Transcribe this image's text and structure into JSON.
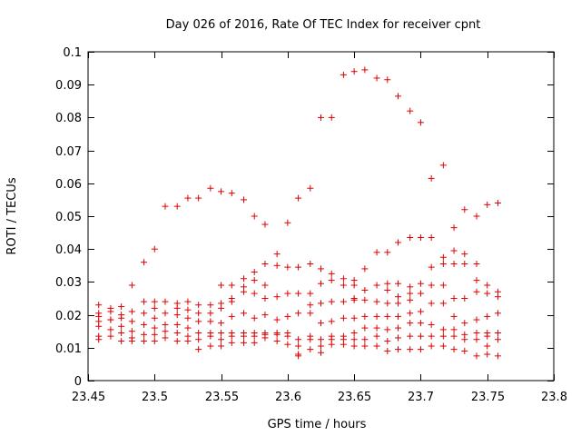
{
  "chart_data": {
    "type": "scatter",
    "title": "Day 026 of 2016, Rate Of TEC Index for receiver cpnt",
    "xlabel": "GPS time / hours",
    "ylabel": "ROTI / TECUs",
    "xlim": [
      23.45,
      23.8
    ],
    "ylim": [
      0,
      0.1
    ],
    "xticks": [
      "23.45",
      "23.5",
      "23.55",
      "23.6",
      "23.65",
      "23.7",
      "23.75",
      "23.8"
    ],
    "yticks": [
      "0",
      "0.01",
      "0.02",
      "0.03",
      "0.04",
      "0.05",
      "0.06",
      "0.07",
      "0.08",
      "0.09",
      "0.1"
    ],
    "grid": false,
    "marker": "+",
    "marker_color": "#e00000",
    "series": [
      {
        "name": "ROTI",
        "points": [
          [
            23.458,
            0.0205
          ],
          [
            23.458,
            0.0195
          ],
          [
            23.458,
            0.018
          ],
          [
            23.458,
            0.0165
          ],
          [
            23.458,
            0.0135
          ],
          [
            23.458,
            0.0125
          ],
          [
            23.458,
            0.023
          ],
          [
            23.467,
            0.022
          ],
          [
            23.467,
            0.0185
          ],
          [
            23.467,
            0.0185
          ],
          [
            23.467,
            0.0155
          ],
          [
            23.467,
            0.0135
          ],
          [
            23.467,
            0.021
          ],
          [
            23.475,
            0.0225
          ],
          [
            23.475,
            0.02
          ],
          [
            23.475,
            0.019
          ],
          [
            23.475,
            0.0165
          ],
          [
            23.475,
            0.0145
          ],
          [
            23.475,
            0.012
          ],
          [
            23.483,
            0.029
          ],
          [
            23.483,
            0.021
          ],
          [
            23.483,
            0.018
          ],
          [
            23.483,
            0.015
          ],
          [
            23.483,
            0.013
          ],
          [
            23.483,
            0.012
          ],
          [
            23.492,
            0.036
          ],
          [
            23.492,
            0.024
          ],
          [
            23.492,
            0.0205
          ],
          [
            23.492,
            0.017
          ],
          [
            23.492,
            0.014
          ],
          [
            23.492,
            0.012
          ],
          [
            23.5,
            0.04
          ],
          [
            23.5,
            0.024
          ],
          [
            23.5,
            0.022
          ],
          [
            23.5,
            0.019
          ],
          [
            23.5,
            0.016
          ],
          [
            23.5,
            0.014
          ],
          [
            23.5,
            0.012
          ],
          [
            23.508,
            0.053
          ],
          [
            23.508,
            0.024
          ],
          [
            23.508,
            0.0205
          ],
          [
            23.508,
            0.017
          ],
          [
            23.508,
            0.015
          ],
          [
            23.508,
            0.013
          ],
          [
            23.517,
            0.053
          ],
          [
            23.517,
            0.0235
          ],
          [
            23.517,
            0.022
          ],
          [
            23.517,
            0.02
          ],
          [
            23.517,
            0.017
          ],
          [
            23.517,
            0.0145
          ],
          [
            23.517,
            0.012
          ],
          [
            23.525,
            0.0555
          ],
          [
            23.525,
            0.024
          ],
          [
            23.525,
            0.0215
          ],
          [
            23.525,
            0.019
          ],
          [
            23.525,
            0.016
          ],
          [
            23.525,
            0.0135
          ],
          [
            23.525,
            0.012
          ],
          [
            23.533,
            0.0555
          ],
          [
            23.533,
            0.023
          ],
          [
            23.533,
            0.0205
          ],
          [
            23.533,
            0.018
          ],
          [
            23.533,
            0.0145
          ],
          [
            23.533,
            0.0125
          ],
          [
            23.533,
            0.0095
          ],
          [
            23.542,
            0.0585
          ],
          [
            23.542,
            0.023
          ],
          [
            23.542,
            0.0205
          ],
          [
            23.542,
            0.018
          ],
          [
            23.542,
            0.0145
          ],
          [
            23.542,
            0.0135
          ],
          [
            23.542,
            0.0105
          ],
          [
            23.55,
            0.0575
          ],
          [
            23.55,
            0.029
          ],
          [
            23.55,
            0.0235
          ],
          [
            23.55,
            0.022
          ],
          [
            23.55,
            0.0175
          ],
          [
            23.55,
            0.0145
          ],
          [
            23.55,
            0.0125
          ],
          [
            23.55,
            0.0105
          ],
          [
            23.558,
            0.057
          ],
          [
            23.558,
            0.029
          ],
          [
            23.558,
            0.025
          ],
          [
            23.558,
            0.024
          ],
          [
            23.558,
            0.0195
          ],
          [
            23.558,
            0.0145
          ],
          [
            23.558,
            0.0135
          ],
          [
            23.558,
            0.0115
          ],
          [
            23.567,
            0.055
          ],
          [
            23.567,
            0.031
          ],
          [
            23.567,
            0.0285
          ],
          [
            23.567,
            0.027
          ],
          [
            23.567,
            0.0205
          ],
          [
            23.567,
            0.0145
          ],
          [
            23.567,
            0.0135
          ],
          [
            23.567,
            0.0115
          ],
          [
            23.575,
            0.05
          ],
          [
            23.575,
            0.033
          ],
          [
            23.575,
            0.0305
          ],
          [
            23.575,
            0.0265
          ],
          [
            23.575,
            0.019
          ],
          [
            23.575,
            0.0145
          ],
          [
            23.575,
            0.0135
          ],
          [
            23.575,
            0.0115
          ],
          [
            23.583,
            0.0475
          ],
          [
            23.583,
            0.0355
          ],
          [
            23.583,
            0.029
          ],
          [
            23.583,
            0.025
          ],
          [
            23.583,
            0.02
          ],
          [
            23.583,
            0.0145
          ],
          [
            23.583,
            0.014
          ],
          [
            23.583,
            0.013
          ],
          [
            23.592,
            0.0385
          ],
          [
            23.592,
            0.035
          ],
          [
            23.592,
            0.0255
          ],
          [
            23.592,
            0.0185
          ],
          [
            23.592,
            0.0145
          ],
          [
            23.592,
            0.014
          ],
          [
            23.592,
            0.012
          ],
          [
            23.6,
            0.048
          ],
          [
            23.6,
            0.0345
          ],
          [
            23.6,
            0.0265
          ],
          [
            23.6,
            0.0195
          ],
          [
            23.6,
            0.0145
          ],
          [
            23.6,
            0.0135
          ],
          [
            23.6,
            0.011
          ],
          [
            23.608,
            0.0555
          ],
          [
            23.608,
            0.0345
          ],
          [
            23.608,
            0.0265
          ],
          [
            23.608,
            0.0205
          ],
          [
            23.608,
            0.0125
          ],
          [
            23.608,
            0.0105
          ],
          [
            23.608,
            0.008
          ],
          [
            23.608,
            0.0075
          ],
          [
            23.617,
            0.0585
          ],
          [
            23.617,
            0.0355
          ],
          [
            23.617,
            0.0265
          ],
          [
            23.617,
            0.023
          ],
          [
            23.617,
            0.0205
          ],
          [
            23.617,
            0.0135
          ],
          [
            23.617,
            0.0125
          ],
          [
            23.617,
            0.0095
          ],
          [
            23.625,
            0.08
          ],
          [
            23.625,
            0.034
          ],
          [
            23.625,
            0.0295
          ],
          [
            23.625,
            0.0235
          ],
          [
            23.625,
            0.0175
          ],
          [
            23.625,
            0.0125
          ],
          [
            23.625,
            0.0105
          ],
          [
            23.625,
            0.0085
          ],
          [
            23.633,
            0.08
          ],
          [
            23.633,
            0.0325
          ],
          [
            23.633,
            0.0305
          ],
          [
            23.633,
            0.024
          ],
          [
            23.633,
            0.018
          ],
          [
            23.633,
            0.0135
          ],
          [
            23.633,
            0.0125
          ],
          [
            23.633,
            0.011
          ],
          [
            23.642,
            0.093
          ],
          [
            23.642,
            0.031
          ],
          [
            23.642,
            0.029
          ],
          [
            23.642,
            0.024
          ],
          [
            23.642,
            0.019
          ],
          [
            23.642,
            0.0135
          ],
          [
            23.642,
            0.0125
          ],
          [
            23.642,
            0.011
          ],
          [
            23.65,
            0.094
          ],
          [
            23.65,
            0.0305
          ],
          [
            23.65,
            0.029
          ],
          [
            23.65,
            0.025
          ],
          [
            23.65,
            0.0245
          ],
          [
            23.65,
            0.019
          ],
          [
            23.65,
            0.0145
          ],
          [
            23.65,
            0.0125
          ],
          [
            23.65,
            0.0105
          ],
          [
            23.658,
            0.0945
          ],
          [
            23.658,
            0.034
          ],
          [
            23.658,
            0.0275
          ],
          [
            23.658,
            0.0245
          ],
          [
            23.658,
            0.0195
          ],
          [
            23.658,
            0.016
          ],
          [
            23.658,
            0.0125
          ],
          [
            23.658,
            0.0105
          ],
          [
            23.667,
            0.092
          ],
          [
            23.667,
            0.039
          ],
          [
            23.667,
            0.029
          ],
          [
            23.667,
            0.024
          ],
          [
            23.667,
            0.0195
          ],
          [
            23.667,
            0.016
          ],
          [
            23.667,
            0.0135
          ],
          [
            23.667,
            0.0105
          ],
          [
            23.675,
            0.0915
          ],
          [
            23.675,
            0.039
          ],
          [
            23.675,
            0.0295
          ],
          [
            23.675,
            0.0275
          ],
          [
            23.675,
            0.0235
          ],
          [
            23.675,
            0.0195
          ],
          [
            23.675,
            0.0155
          ],
          [
            23.675,
            0.012
          ],
          [
            23.675,
            0.009
          ],
          [
            23.683,
            0.0865
          ],
          [
            23.683,
            0.042
          ],
          [
            23.683,
            0.0295
          ],
          [
            23.683,
            0.0255
          ],
          [
            23.683,
            0.0235
          ],
          [
            23.683,
            0.0195
          ],
          [
            23.683,
            0.016
          ],
          [
            23.683,
            0.013
          ],
          [
            23.683,
            0.0095
          ],
          [
            23.692,
            0.082
          ],
          [
            23.692,
            0.0435
          ],
          [
            23.692,
            0.0285
          ],
          [
            23.692,
            0.0265
          ],
          [
            23.692,
            0.0245
          ],
          [
            23.692,
            0.0205
          ],
          [
            23.692,
            0.0175
          ],
          [
            23.692,
            0.0135
          ],
          [
            23.692,
            0.0095
          ],
          [
            23.7,
            0.0785
          ],
          [
            23.7,
            0.0435
          ],
          [
            23.7,
            0.0295
          ],
          [
            23.7,
            0.0265
          ],
          [
            23.7,
            0.021
          ],
          [
            23.7,
            0.0175
          ],
          [
            23.7,
            0.0135
          ],
          [
            23.7,
            0.0095
          ],
          [
            23.708,
            0.0615
          ],
          [
            23.708,
            0.0435
          ],
          [
            23.708,
            0.0345
          ],
          [
            23.708,
            0.029
          ],
          [
            23.708,
            0.0235
          ],
          [
            23.708,
            0.017
          ],
          [
            23.708,
            0.0135
          ],
          [
            23.708,
            0.0105
          ],
          [
            23.717,
            0.0655
          ],
          [
            23.717,
            0.0375
          ],
          [
            23.717,
            0.0355
          ],
          [
            23.717,
            0.029
          ],
          [
            23.717,
            0.0235
          ],
          [
            23.717,
            0.0155
          ],
          [
            23.717,
            0.0135
          ],
          [
            23.717,
            0.0105
          ],
          [
            23.725,
            0.0465
          ],
          [
            23.725,
            0.0395
          ],
          [
            23.725,
            0.0355
          ],
          [
            23.725,
            0.025
          ],
          [
            23.725,
            0.0195
          ],
          [
            23.725,
            0.0155
          ],
          [
            23.725,
            0.0135
          ],
          [
            23.725,
            0.0095
          ],
          [
            23.733,
            0.052
          ],
          [
            23.733,
            0.0385
          ],
          [
            23.733,
            0.0355
          ],
          [
            23.733,
            0.025
          ],
          [
            23.733,
            0.0175
          ],
          [
            23.733,
            0.014
          ],
          [
            23.733,
            0.0125
          ],
          [
            23.733,
            0.009
          ],
          [
            23.742,
            0.05
          ],
          [
            23.742,
            0.0355
          ],
          [
            23.742,
            0.0305
          ],
          [
            23.742,
            0.027
          ],
          [
            23.742,
            0.0185
          ],
          [
            23.742,
            0.0145
          ],
          [
            23.742,
            0.0125
          ],
          [
            23.742,
            0.0075
          ],
          [
            23.75,
            0.0535
          ],
          [
            23.75,
            0.029
          ],
          [
            23.75,
            0.0265
          ],
          [
            23.75,
            0.0195
          ],
          [
            23.75,
            0.0145
          ],
          [
            23.75,
            0.0135
          ],
          [
            23.75,
            0.0105
          ],
          [
            23.75,
            0.008
          ],
          [
            23.758,
            0.054
          ],
          [
            23.758,
            0.027
          ],
          [
            23.758,
            0.0255
          ],
          [
            23.758,
            0.0205
          ],
          [
            23.758,
            0.0145
          ],
          [
            23.758,
            0.0125
          ],
          [
            23.758,
            0.0075
          ]
        ]
      }
    ]
  }
}
